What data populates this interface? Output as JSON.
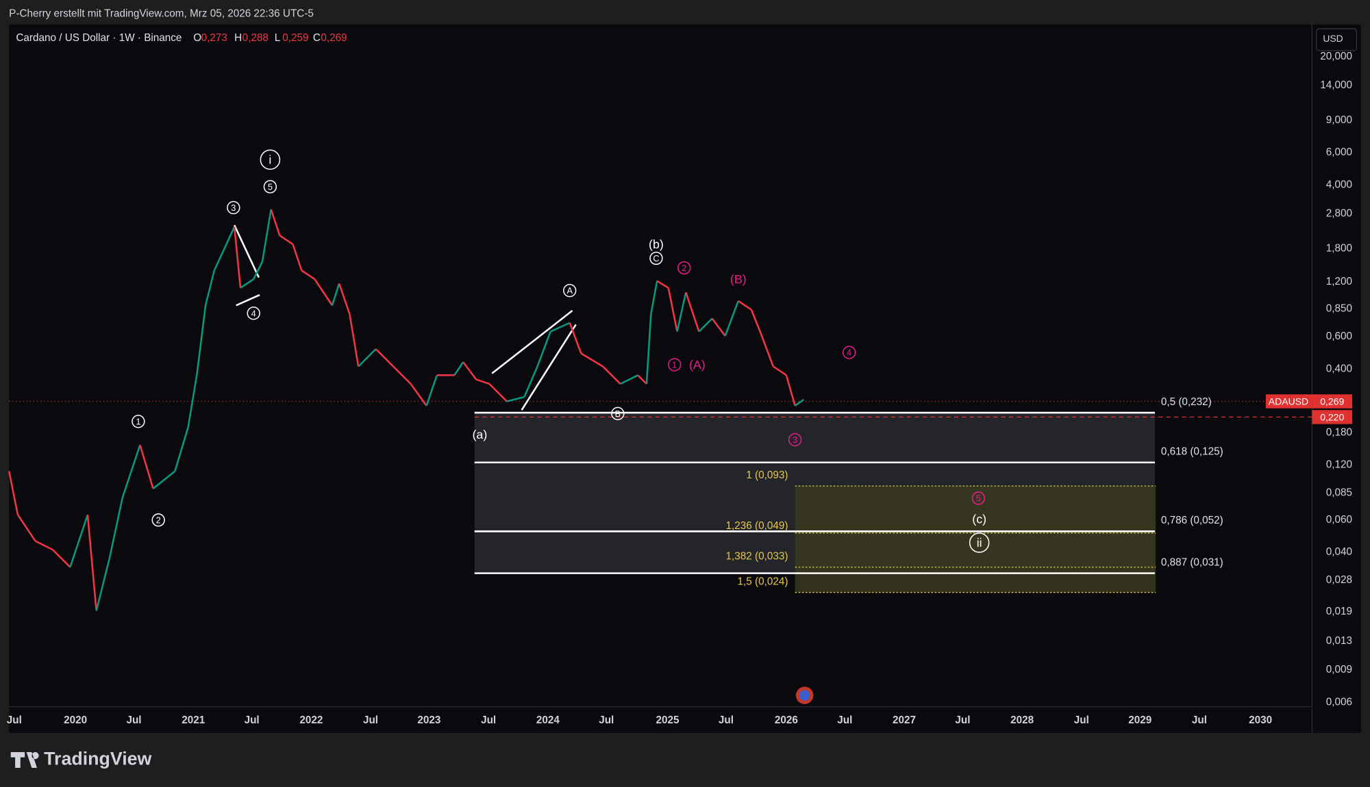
{
  "header": {
    "attribution": "P-Cherry erstellt mit TradingView.com, Mrz 05, 2026 22:36 UTC-5"
  },
  "legend": {
    "symbol": "Cardano / US Dollar · 1W · Binance",
    "ohlc": [
      {
        "key": "O",
        "value": "0,273"
      },
      {
        "key": "H",
        "value": "0,288"
      },
      {
        "key": "L",
        "value": "0,259"
      },
      {
        "key": "C",
        "value": "0,269"
      }
    ]
  },
  "price_axis": {
    "currency": "USD",
    "labels": [
      "20,000",
      "14,000",
      "9,000",
      "6,000",
      "4,000",
      "2,800",
      "1,800",
      "1,200",
      "0,850",
      "0,600",
      "0,400",
      "0,180",
      "0,120",
      "0,085",
      "0,060",
      "0,040",
      "0,028",
      "0,019",
      "0,013",
      "0,009",
      "0,006"
    ]
  },
  "time_axis": {
    "labels": [
      "Jul",
      "2020",
      "Jul",
      "2021",
      "Jul",
      "2022",
      "Jul",
      "2023",
      "Jul",
      "2024",
      "Jul",
      "2025",
      "Jul",
      "2026",
      "Jul",
      "2027",
      "Jul",
      "2028",
      "Jul",
      "2029",
      "Jul",
      "2030"
    ]
  },
  "price_tags": {
    "symbol": "ADAUSD",
    "last": "0,269",
    "level": "0,220"
  },
  "fib_retracement": [
    "0,5 (0,232)",
    "0,618 (0,125)",
    "0,786 (0,052)",
    "0,887 (0,031)"
  ],
  "fib_extension": [
    "1 (0,093)",
    "1,236 (0,049)",
    "1,382 (0,033)",
    "1,5 (0,024)"
  ],
  "wave_labels": [
    "i",
    "5",
    "3",
    "4",
    "1",
    "2",
    "(a)",
    "A",
    "B",
    "C",
    "(b)",
    "2",
    "(B)",
    "1",
    "(A)",
    "4",
    "3",
    "5",
    "(c)",
    "ii"
  ],
  "footer": {
    "logo": "TradingView"
  }
}
